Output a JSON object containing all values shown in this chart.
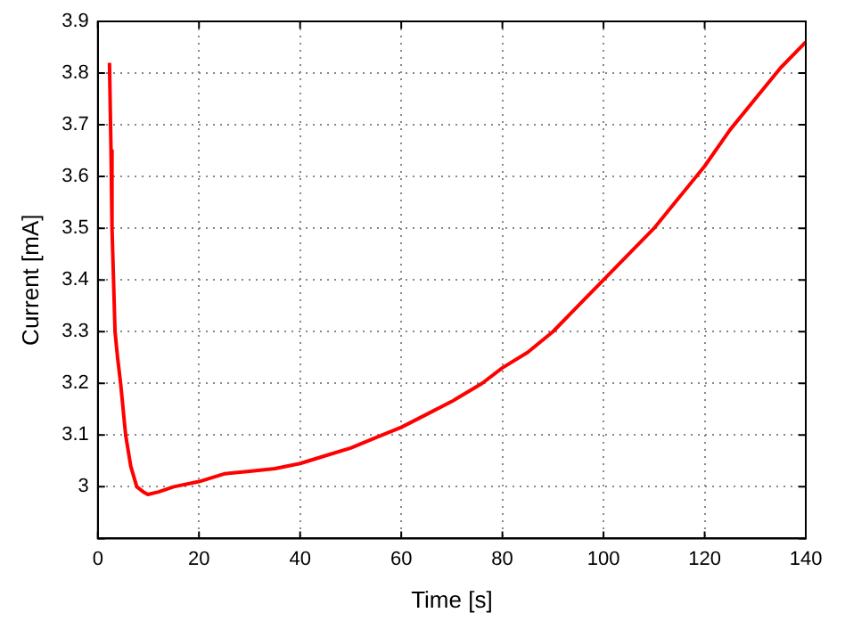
{
  "chart_data": {
    "type": "line",
    "xlabel": "Time [s]",
    "ylabel": "Current [mA]",
    "xlim": [
      0,
      140
    ],
    "xticks": [
      0,
      20,
      40,
      60,
      80,
      100,
      120,
      140
    ],
    "ylim": [
      2.9,
      3.9
    ],
    "yticks": [
      {
        "value": 2.9,
        "label": null
      },
      3,
      3.1,
      3.2,
      3.3,
      3.4,
      3.5,
      3.6,
      3.7,
      3.8,
      3.9
    ],
    "grid": true,
    "line_style": "solid",
    "marker": "none",
    "series": [
      {
        "color": "#ff0000",
        "x": [
          2.3,
          2.6,
          2.8,
          3.1,
          3.4,
          3.9,
          4.5,
          5.5,
          6.5,
          7.7,
          9,
          9.9,
          12,
          15,
          20,
          25,
          30,
          35,
          40,
          45,
          50,
          55,
          60,
          65,
          70,
          76,
          80,
          85,
          90,
          95,
          100,
          105,
          110,
          115,
          120,
          125,
          130,
          135,
          140
        ],
        "values": [
          3.82,
          3.65,
          3.5,
          3.4,
          3.3,
          3.25,
          3.2,
          3.1,
          3.04,
          3.0,
          2.99,
          2.985,
          2.99,
          3.0,
          3.01,
          3.025,
          3.03,
          3.035,
          3.045,
          3.06,
          3.075,
          3.095,
          3.115,
          3.14,
          3.165,
          3.2,
          3.23,
          3.26,
          3.3,
          3.35,
          3.4,
          3.45,
          3.5,
          3.56,
          3.62,
          3.69,
          3.75,
          3.81,
          3.86
        ]
      }
    ]
  }
}
